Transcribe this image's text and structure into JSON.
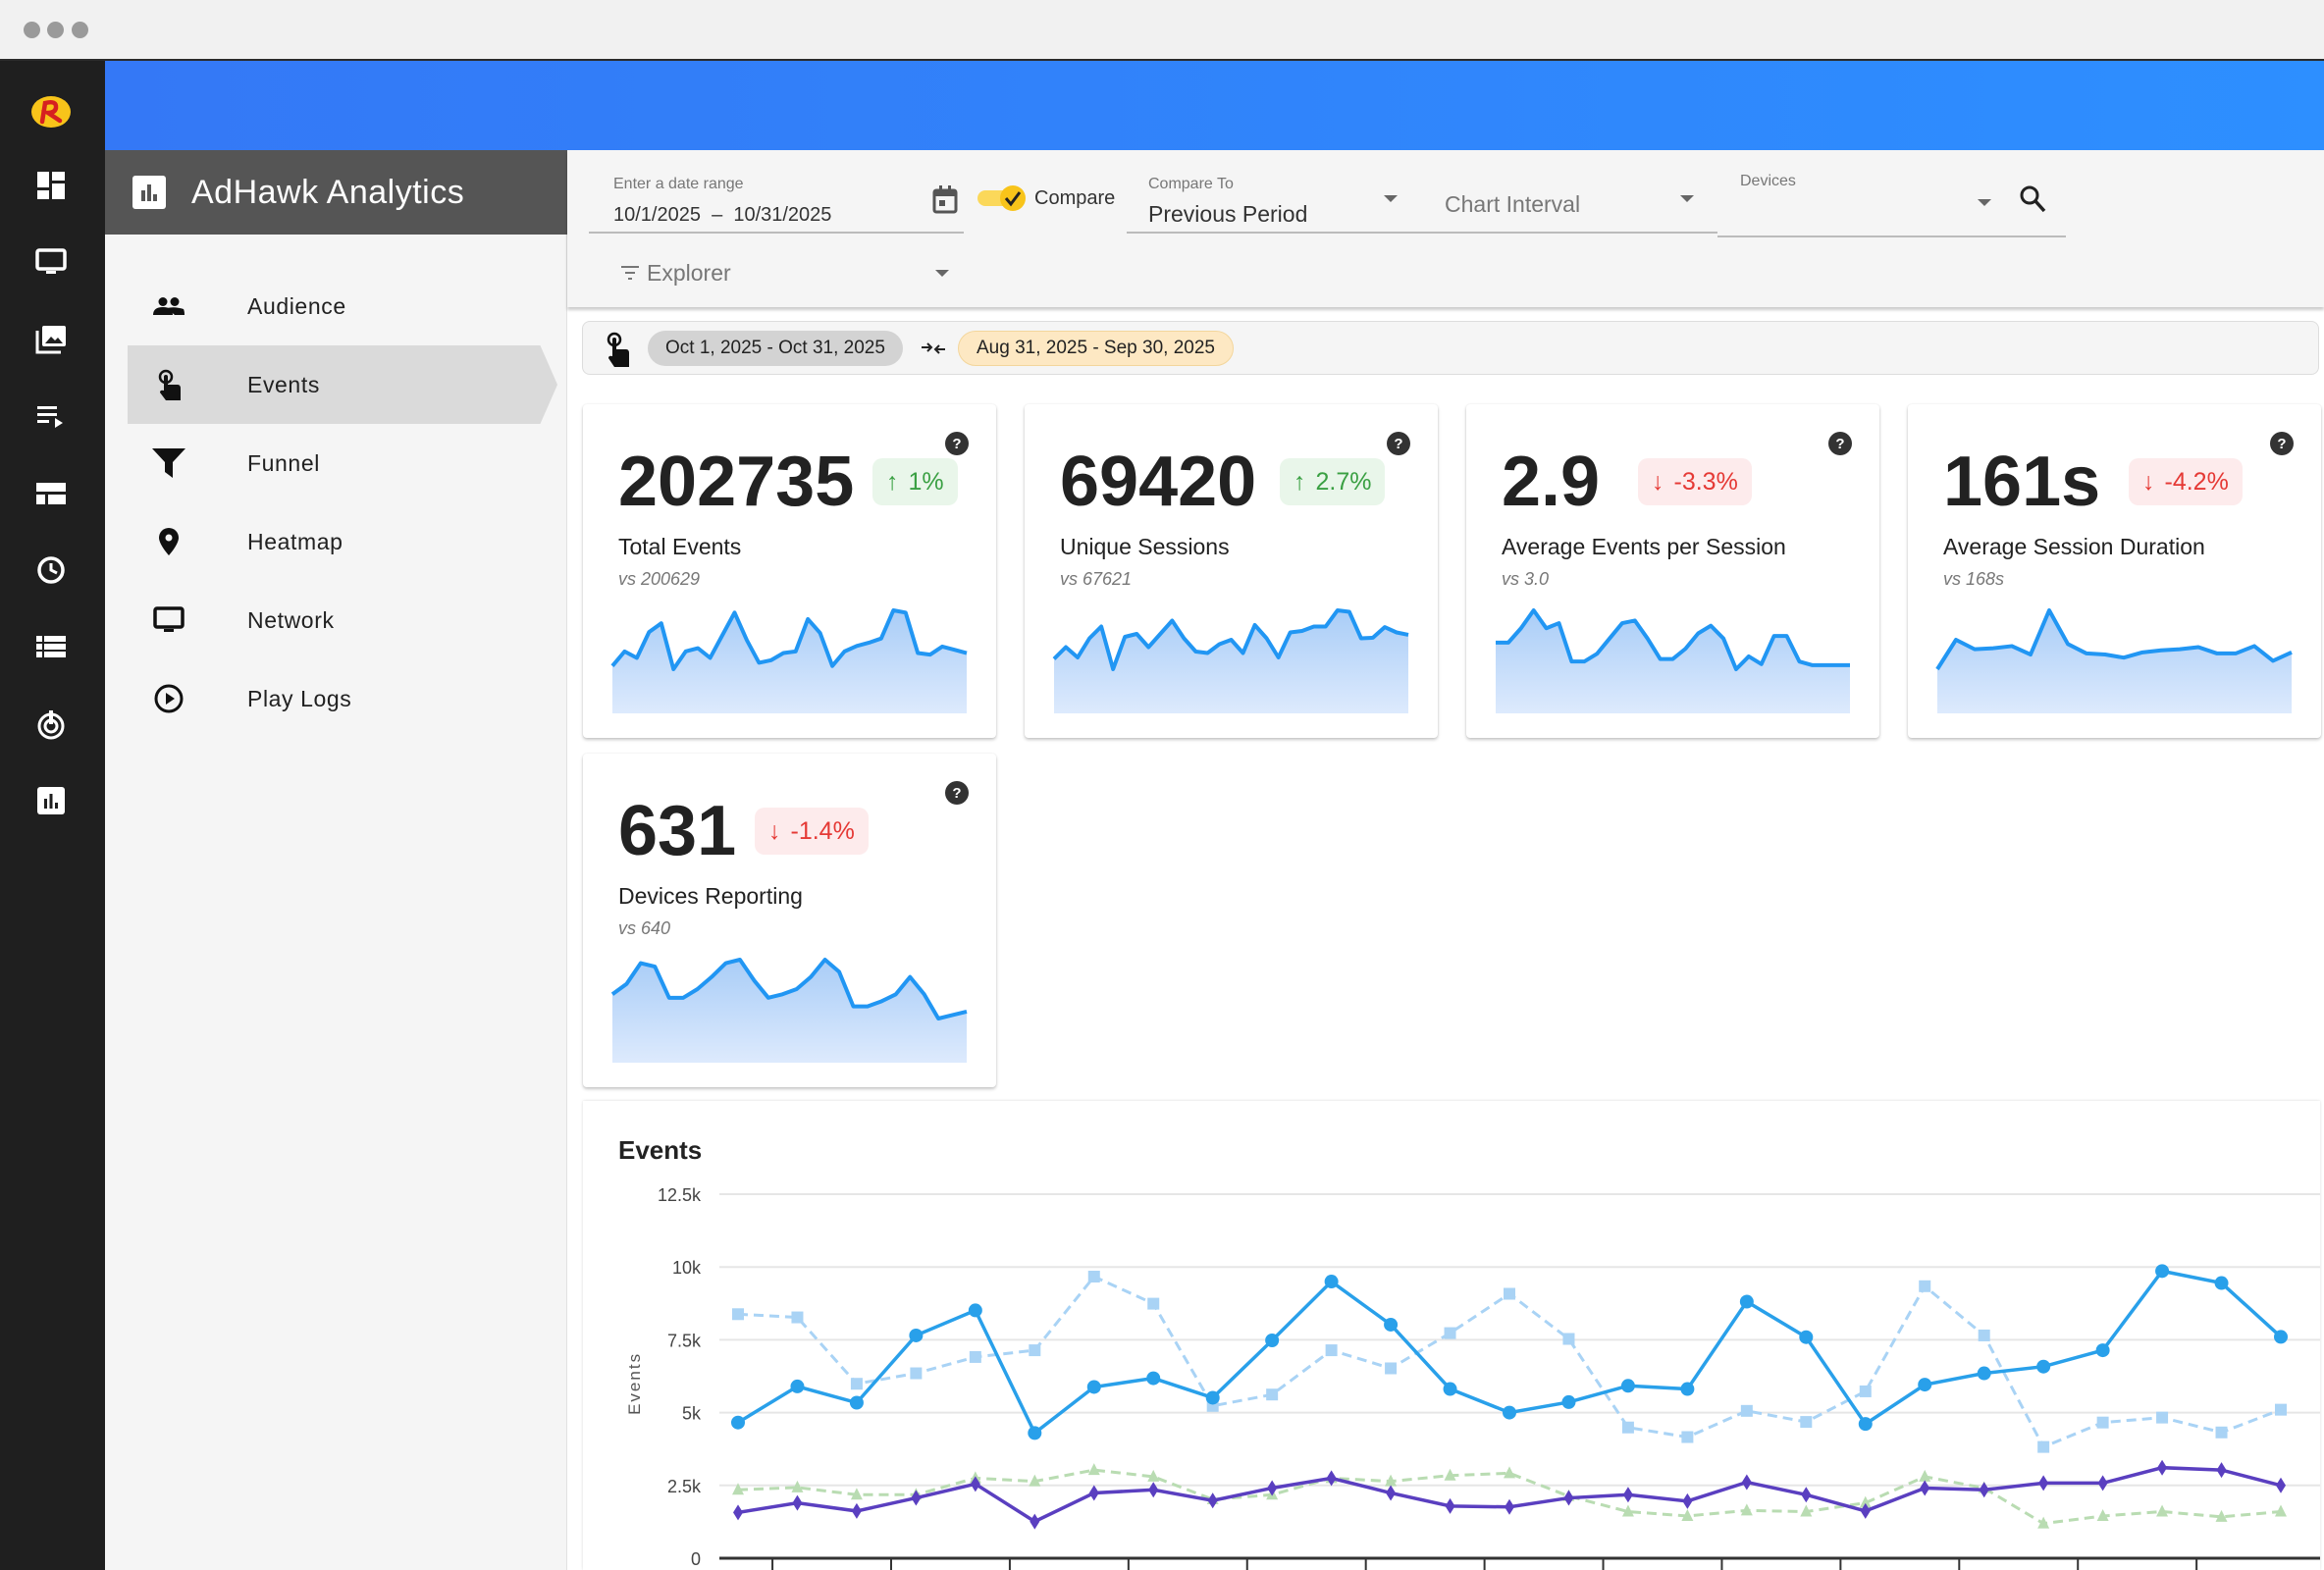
{
  "app": {
    "title": "AdHawk Analytics"
  },
  "rail": {
    "icons": [
      "logo",
      "dashboard-icon",
      "monitor-icon",
      "media-library-icon",
      "playlist-icon",
      "layout-icon",
      "clock-icon",
      "list-icon",
      "target-icon",
      "analytics-icon"
    ]
  },
  "sidebar": {
    "items": [
      {
        "label": "Audience",
        "icon": "people-icon"
      },
      {
        "label": "Events",
        "icon": "touch-icon",
        "active": true
      },
      {
        "label": "Funnel",
        "icon": "funnel-icon"
      },
      {
        "label": "Heatmap",
        "icon": "location-pin-icon"
      },
      {
        "label": "Network",
        "icon": "monitor-icon"
      },
      {
        "label": "Play Logs",
        "icon": "play-circle-icon"
      }
    ]
  },
  "filters": {
    "date_range_label": "Enter a date range",
    "date_range_value": "10/1/2025  –  10/31/2025",
    "compare_label": "Compare",
    "compare_on": true,
    "compare_to_label": "Compare To",
    "compare_to_value": "Previous Period",
    "chart_interval_placeholder": "Chart Interval",
    "devices_label": "Devices",
    "devices_value": "",
    "explorer_placeholder": "Explorer"
  },
  "chips": {
    "current": "Oct 1, 2025 - Oct 31, 2025",
    "previous": "Aug 31, 2025 - Sep 30, 2025"
  },
  "colors": {
    "accent": "#2d8fff",
    "up": "#3aa043",
    "down": "#e53935",
    "current": "#29a0ea",
    "previous": "#a9d3f5",
    "current2": "#5a3fc0",
    "previous2": "#b9dcb2"
  },
  "cards": [
    {
      "value": "202735",
      "change": "1%",
      "direction": "up",
      "label": "Total Events",
      "vs": "vs 200629",
      "spark": [
        160,
        205,
        185,
        265,
        292,
        150,
        205,
        215,
        185,
        255,
        325,
        240,
        170,
        178,
        200,
        205,
        305,
        262,
        160,
        205,
        222,
        232,
        245,
        332,
        325,
        200,
        195,
        220,
        210,
        200
      ]
    },
    {
      "value": "69420",
      "change": "2.7%",
      "direction": "up",
      "label": "Unique Sessions",
      "vs": "vs 67621",
      "spark": [
        170,
        210,
        175,
        240,
        280,
        135,
        245,
        255,
        210,
        255,
        300,
        240,
        195,
        190,
        220,
        235,
        190,
        285,
        240,
        175,
        260,
        265,
        280,
        280,
        335,
        330,
        240,
        242,
        278,
        260,
        252
      ]
    },
    {
      "value": "2.9",
      "change": "-3.3%",
      "direction": "down",
      "label": "Average Events per Session",
      "vs": "vs 3.0",
      "spark": [
        272,
        272,
        300,
        335,
        300,
        310,
        235,
        235,
        250,
        280,
        310,
        315,
        280,
        240,
        240,
        260,
        290,
        305,
        280,
        220,
        245,
        230,
        285,
        285,
        235,
        228,
        228,
        228,
        228
      ]
    },
    {
      "value": "161s",
      "change": "-4.2%",
      "direction": "down",
      "label": "Average Session Duration",
      "vs": "vs 168s",
      "spark": [
        60,
        200,
        155,
        160,
        170,
        130,
        340,
        180,
        135,
        130,
        115,
        140,
        150,
        155,
        165,
        135,
        135,
        170,
        100,
        140
      ]
    },
    {
      "value": "631",
      "change": "-1.4%",
      "direction": "down",
      "label": "Devices Reporting",
      "vs": "vs 640",
      "spark": [
        332,
        338,
        350,
        348,
        330,
        330,
        335,
        342,
        350,
        352,
        340,
        330,
        332,
        335,
        342,
        352,
        345,
        325,
        325,
        328,
        332,
        342,
        332,
        318,
        320,
        322
      ]
    }
  ],
  "chart_data": {
    "type": "line",
    "title": "Events",
    "ylabel": "Events",
    "ylim": [
      0,
      12500
    ],
    "yticks": [
      "0",
      "2.5k",
      "5k",
      "7.5k",
      "10k",
      "12.5k"
    ],
    "grid": true,
    "series": [
      {
        "style": "solid-circle",
        "color": "#29a0ea",
        "values": [
          4660,
          5900,
          5340,
          7650,
          8510,
          4300,
          5880,
          6180,
          5510,
          7480,
          9500,
          8020,
          5810,
          5000,
          5360,
          5920,
          5810,
          8810,
          7590,
          4610,
          5960,
          6350,
          6580,
          7140,
          9860,
          9450,
          7600
        ]
      },
      {
        "style": "dashed-square",
        "color": "#a9d3f5",
        "values": [
          8380,
          8270,
          5990,
          6350,
          6910,
          7140,
          9670,
          8740,
          5230,
          5620,
          7140,
          6520,
          7730,
          9080,
          7530,
          4490,
          4160,
          5060,
          4680,
          5730,
          9340,
          7650,
          3820,
          4660,
          4830,
          4320,
          5100
        ]
      },
      {
        "style": "solid-diamond",
        "color": "#5a3fc0",
        "values": [
          1570,
          1900,
          1620,
          2070,
          2550,
          1260,
          2240,
          2350,
          1980,
          2410,
          2750,
          2240,
          1790,
          1760,
          2070,
          2180,
          1960,
          2610,
          2180,
          1620,
          2410,
          2350,
          2580,
          2580,
          3110,
          3030,
          2500
        ]
      },
      {
        "style": "dashed-triangle",
        "color": "#b9dcb2",
        "values": [
          2350,
          2430,
          2180,
          2180,
          2750,
          2640,
          3030,
          2800,
          2020,
          2180,
          2750,
          2640,
          2840,
          2920,
          2130,
          1600,
          1450,
          1640,
          1600,
          1900,
          2800,
          2410,
          1190,
          1450,
          1600,
          1420,
          1600
        ]
      }
    ]
  }
}
